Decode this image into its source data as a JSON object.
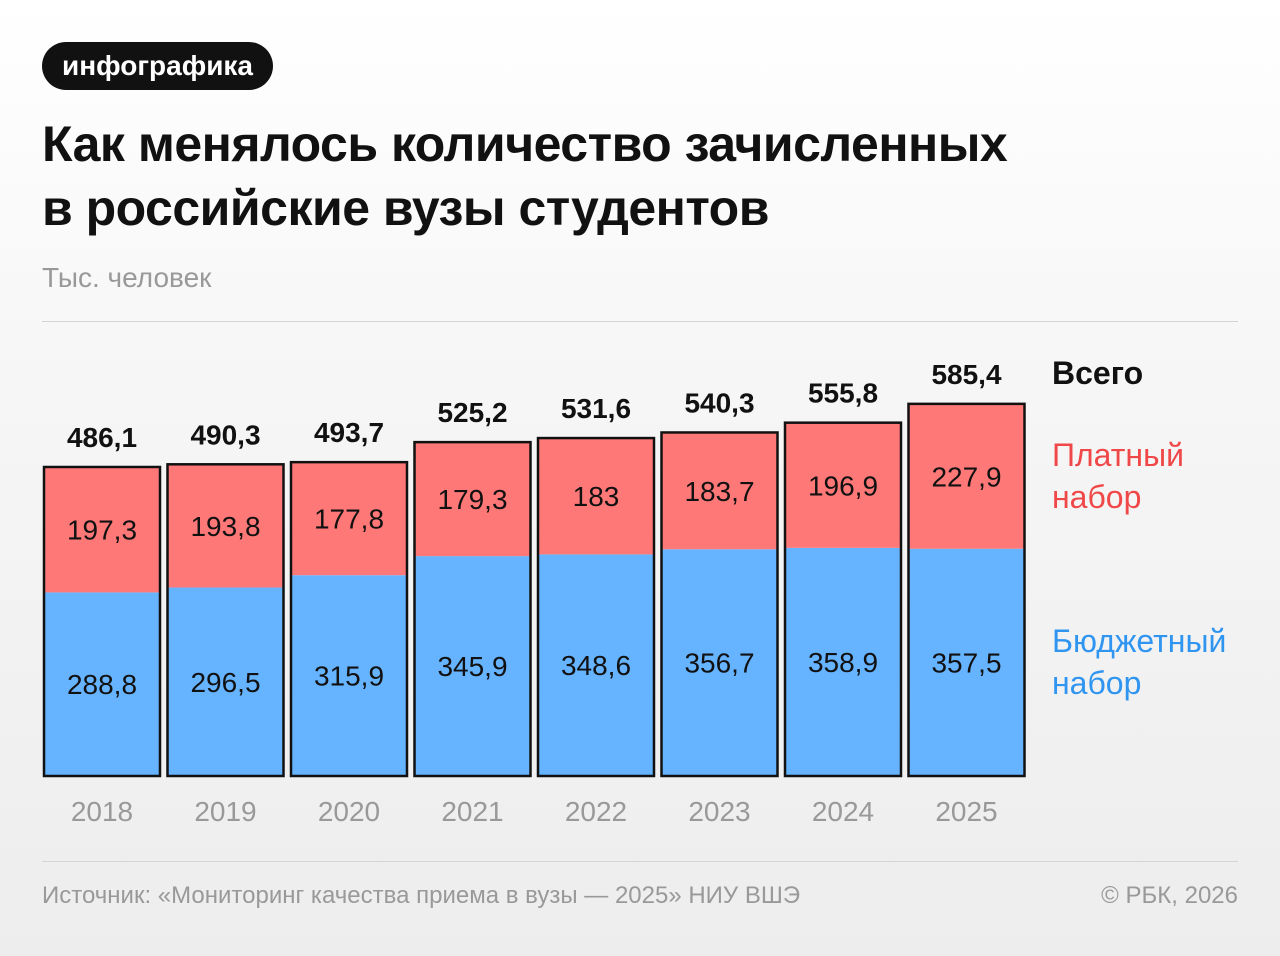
{
  "badge": "инфографика",
  "title_line1": "Как менялось количество зачисленных",
  "title_line2": "в российские вузы студентов",
  "unit": "Тыс. человек",
  "legend": {
    "total": "Всего",
    "paid_1": "Платный",
    "paid_2": "набор",
    "budget_1": "Бюджетный",
    "budget_2": "набор"
  },
  "colors": {
    "paid": "#ff7878",
    "budget": "#66b3ff",
    "outline": "#111111"
  },
  "footer": {
    "source": "Источник: «Мониторинг качества приема в вузы — 2025» НИУ ВШЭ",
    "copyright": "© РБК, 2026"
  },
  "chart_data": {
    "type": "bar",
    "stacked": true,
    "categories": [
      "2018",
      "2019",
      "2020",
      "2021",
      "2022",
      "2023",
      "2024",
      "2025"
    ],
    "series": [
      {
        "name": "Бюджетный набор",
        "values": [
          288.8,
          296.5,
          315.9,
          345.9,
          348.6,
          356.7,
          358.9,
          357.5
        ],
        "labels": [
          "288,8",
          "296,5",
          "315,9",
          "345,9",
          "348,6",
          "356,7",
          "358,9",
          "357,5"
        ]
      },
      {
        "name": "Платный набор",
        "values": [
          197.3,
          193.8,
          177.8,
          179.3,
          183,
          183.7,
          196.9,
          227.9
        ],
        "labels": [
          "197,3",
          "193,8",
          "177,8",
          "179,3",
          "183",
          "183,7",
          "196,9",
          "227,9"
        ]
      }
    ],
    "totals": {
      "name": "Всего",
      "values": [
        486.1,
        490.3,
        493.7,
        525.2,
        531.6,
        540.3,
        555.8,
        585.4
      ],
      "labels": [
        "486,1",
        "490,3",
        "493,7",
        "525,2",
        "531,6",
        "540,3",
        "555,8",
        "585,4"
      ]
    },
    "ylabel": "Тыс. человек",
    "grid": false,
    "legend_position": "right"
  }
}
